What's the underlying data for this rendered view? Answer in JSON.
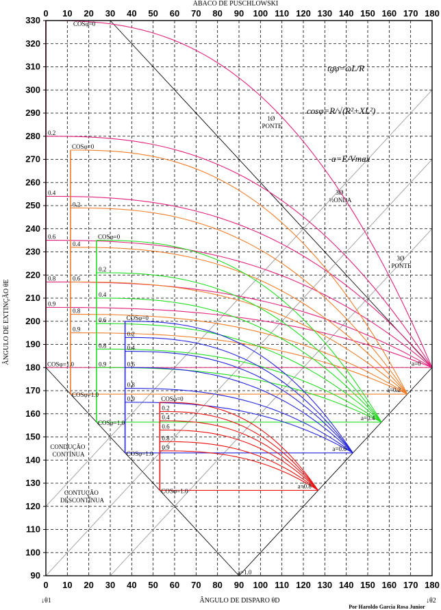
{
  "chart_data": {
    "type": "line",
    "title": "ÁBACO DE PUSCHLOWSKI",
    "xlabel": "ÂNGULO DE DISPARO θD",
    "ylabel": "ÂNGULO DE EXTINÇÃO θE",
    "xlim": [
      0,
      180
    ],
    "ylim": [
      90,
      330
    ],
    "x_ticks": [
      0,
      10,
      20,
      30,
      40,
      50,
      60,
      70,
      80,
      90,
      100,
      110,
      120,
      130,
      140,
      150,
      160,
      170,
      180
    ],
    "y_ticks": [
      90,
      100,
      110,
      120,
      130,
      140,
      150,
      160,
      170,
      180,
      190,
      200,
      210,
      220,
      230,
      240,
      250,
      260,
      270,
      280,
      290,
      300,
      310,
      320,
      330
    ],
    "grid": true,
    "corner_labels": {
      "theta1": "↓θ1",
      "theta2": "↓θ2"
    },
    "credit": "Por Haroldo Garcia Rosa Junior",
    "formulas": {
      "tg": "tgφ=ωL/R",
      "cos": "cosφ=R/√(R²+XL²)",
      "a": "a=E/Vmax"
    },
    "region_labels": [
      "1Ø PONTE",
      "3Ø ½ONDA",
      "3Ø PONTE",
      "CONDUÇÃO CONTÍNUA",
      "CONTUÇÃO DESCONTÍNUA"
    ],
    "series": [
      {
        "name": "a=0",
        "color": "#e0207a",
        "label": "a=0",
        "cos0_label": "COSφ=0",
        "cos1_label": "COSφ=1.0",
        "start_x": 0,
        "cos_labels": [
          "0.2",
          "0.4",
          "0.6",
          "0.8",
          "0.9"
        ],
        "curves": [
          {
            "cos": 0.0,
            "start": [
              0,
              330
            ],
            "end": [
              180,
              180
            ]
          },
          {
            "cos": 0.2,
            "start": [
              0,
              280
            ],
            "end": [
              180,
              180
            ]
          },
          {
            "cos": 0.4,
            "start": [
              0,
              254
            ],
            "end": [
              180,
              180
            ]
          },
          {
            "cos": 0.6,
            "start": [
              0,
              235
            ],
            "end": [
              180,
              180
            ]
          },
          {
            "cos": 0.8,
            "start": [
              0,
              217
            ],
            "end": [
              180,
              180
            ]
          },
          {
            "cos": 0.9,
            "start": [
              0,
              206
            ],
            "end": [
              180,
              180
            ]
          },
          {
            "cos": 1.0,
            "start": [
              0,
              180
            ],
            "end": [
              180,
              180
            ]
          }
        ]
      },
      {
        "name": "a=0.2",
        "color": "#f07d2a",
        "label": "a=0.2",
        "cos0_label": "COSφ=0",
        "cos1_label": "COSφ=1.0",
        "start_x": 11.5,
        "cos_labels": [
          "0.2",
          "0.4",
          "0.6",
          "0.8",
          "0.9"
        ],
        "curves": [
          {
            "cos": 0.0,
            "start": [
              11.5,
              274
            ],
            "end": [
              168.5,
              168.5
            ]
          },
          {
            "cos": 0.2,
            "start": [
              11.5,
              249
            ],
            "end": [
              168.5,
              168.5
            ]
          },
          {
            "cos": 0.4,
            "start": [
              11.5,
              232
            ],
            "end": [
              168.5,
              168.5
            ]
          },
          {
            "cos": 0.6,
            "start": [
              11.5,
              217
            ],
            "end": [
              168.5,
              168.5
            ]
          },
          {
            "cos": 0.8,
            "start": [
              11.5,
              203
            ],
            "end": [
              168.5,
              168.5
            ]
          },
          {
            "cos": 0.9,
            "start": [
              11.5,
              195
            ],
            "end": [
              168.5,
              168.5
            ]
          },
          {
            "cos": 1.0,
            "start": [
              11.5,
              168.5
            ],
            "end": [
              168.5,
              168.5
            ]
          }
        ]
      },
      {
        "name": "a=0.4",
        "color": "#22dd22",
        "label": "a=0.4",
        "cos0_label": "COSφ=0",
        "cos1_label": "COSφ=1.0",
        "start_x": 23.6,
        "cos_labels": [
          "0.2",
          "0.4",
          "0.6",
          "0.8",
          "0.9"
        ],
        "curves": [
          {
            "cos": 0.0,
            "start": [
              23.6,
              235
            ],
            "end": [
              156.4,
              156.4
            ]
          },
          {
            "cos": 0.2,
            "start": [
              23.6,
              221
            ],
            "end": [
              156.4,
              156.4
            ]
          },
          {
            "cos": 0.4,
            "start": [
              23.6,
              210
            ],
            "end": [
              156.4,
              156.4
            ]
          },
          {
            "cos": 0.6,
            "start": [
              23.6,
              199
            ],
            "end": [
              156.4,
              156.4
            ]
          },
          {
            "cos": 0.8,
            "start": [
              23.6,
              188
            ],
            "end": [
              156.4,
              156.4
            ]
          },
          {
            "cos": 0.9,
            "start": [
              23.6,
              180
            ],
            "end": [
              156.4,
              156.4
            ]
          },
          {
            "cos": 1.0,
            "start": [
              23.6,
              156.4
            ],
            "end": [
              156.4,
              156.4
            ]
          }
        ]
      },
      {
        "name": "a=0.6",
        "color": "#2222dd",
        "label": "a=0.6",
        "cos0_label": "COSφ=0",
        "cos1_label": "COSφ=1.0",
        "start_x": 36.9,
        "cos_labels": [
          "0.2",
          "0.4",
          "0.6",
          "0.8",
          "0.9"
        ],
        "curves": [
          {
            "cos": 0.0,
            "start": [
              36.9,
              200
            ],
            "end": [
              143.1,
              143.1
            ]
          },
          {
            "cos": 0.2,
            "start": [
              36.9,
              193
            ],
            "end": [
              143.1,
              143.1
            ]
          },
          {
            "cos": 0.4,
            "start": [
              36.9,
              187
            ],
            "end": [
              143.1,
              143.1
            ]
          },
          {
            "cos": 0.6,
            "start": [
              36.9,
              180
            ],
            "end": [
              143.1,
              143.1
            ]
          },
          {
            "cos": 0.8,
            "start": [
              36.9,
              171
            ],
            "end": [
              143.1,
              143.1
            ]
          },
          {
            "cos": 0.9,
            "start": [
              36.9,
              165
            ],
            "end": [
              143.1,
              143.1
            ]
          },
          {
            "cos": 1.0,
            "start": [
              36.9,
              143.1
            ],
            "end": [
              143.1,
              143.1
            ]
          }
        ]
      },
      {
        "name": "a=0.8",
        "color": "#e81010",
        "label": "a=0.8",
        "cos0_label": "COSφ=0",
        "cos1_label": "COSφ=1.0",
        "start_x": 53.1,
        "cos_labels": [
          "0.2",
          "0.4",
          "0.6",
          "0.8",
          "0.9"
        ],
        "curves": [
          {
            "cos": 0.0,
            "start": [
              53.1,
              165
            ],
            "end": [
              126.9,
              126.9
            ]
          },
          {
            "cos": 0.2,
            "start": [
              53.1,
              161
            ],
            "end": [
              126.9,
              126.9
            ]
          },
          {
            "cos": 0.4,
            "start": [
              53.1,
              157
            ],
            "end": [
              126.9,
              126.9
            ]
          },
          {
            "cos": 0.6,
            "start": [
              53.1,
              153
            ],
            "end": [
              126.9,
              126.9
            ]
          },
          {
            "cos": 0.8,
            "start": [
              53.1,
              148
            ],
            "end": [
              126.9,
              126.9
            ]
          },
          {
            "cos": 0.9,
            "start": [
              53.1,
              144
            ],
            "end": [
              126.9,
              126.9
            ]
          },
          {
            "cos": 1.0,
            "start": [
              53.1,
              126.9
            ],
            "end": [
              126.9,
              126.9
            ]
          }
        ]
      }
    ],
    "a1_label": "a=1.0"
  }
}
